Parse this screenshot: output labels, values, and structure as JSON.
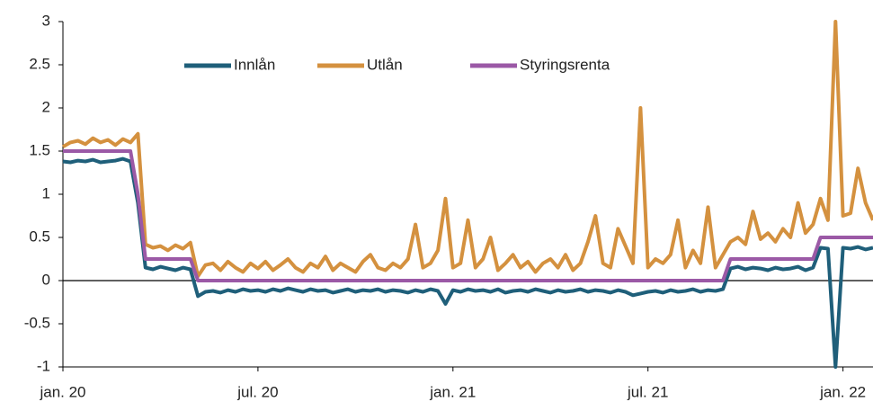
{
  "chart_data": {
    "type": "line",
    "categories": [
      "jan. 20",
      null,
      null,
      null,
      null,
      null,
      null,
      null,
      null,
      null,
      null,
      null,
      null,
      null,
      null,
      null,
      null,
      null,
      null,
      null,
      null,
      null,
      null,
      null,
      null,
      null,
      "jul. 20",
      null,
      null,
      null,
      null,
      null,
      null,
      null,
      null,
      null,
      null,
      null,
      null,
      null,
      null,
      null,
      null,
      null,
      null,
      null,
      null,
      null,
      null,
      null,
      null,
      null,
      "jan. 21",
      null,
      null,
      null,
      null,
      null,
      null,
      null,
      null,
      null,
      null,
      null,
      null,
      null,
      null,
      null,
      null,
      null,
      null,
      null,
      null,
      null,
      null,
      null,
      null,
      null,
      "jul. 21",
      null,
      null,
      null,
      null,
      null,
      null,
      null,
      null,
      null,
      null,
      null,
      null,
      null,
      null,
      null,
      null,
      null,
      null,
      null,
      null,
      null,
      null,
      null,
      null,
      null,
      "jan. 22",
      null,
      null,
      null,
      null
    ],
    "series": [
      {
        "name": "Innlån",
        "color": "#1f5f7a",
        "values": [
          1.38,
          1.37,
          1.39,
          1.38,
          1.4,
          1.37,
          1.38,
          1.39,
          1.41,
          1.38,
          0.9,
          0.15,
          0.13,
          0.16,
          0.14,
          0.12,
          0.15,
          0.13,
          -0.18,
          -0.13,
          -0.12,
          -0.14,
          -0.11,
          -0.13,
          -0.1,
          -0.12,
          -0.11,
          -0.13,
          -0.1,
          -0.12,
          -0.09,
          -0.11,
          -0.13,
          -0.1,
          -0.12,
          -0.11,
          -0.14,
          -0.12,
          -0.1,
          -0.13,
          -0.11,
          -0.12,
          -0.1,
          -0.13,
          -0.11,
          -0.12,
          -0.14,
          -0.11,
          -0.13,
          -0.1,
          -0.12,
          -0.27,
          -0.11,
          -0.13,
          -0.1,
          -0.12,
          -0.11,
          -0.13,
          -0.1,
          -0.14,
          -0.12,
          -0.11,
          -0.13,
          -0.1,
          -0.12,
          -0.14,
          -0.11,
          -0.13,
          -0.12,
          -0.1,
          -0.13,
          -0.11,
          -0.12,
          -0.14,
          -0.11,
          -0.13,
          -0.17,
          -0.15,
          -0.13,
          -0.12,
          -0.14,
          -0.11,
          -0.13,
          -0.12,
          -0.1,
          -0.13,
          -0.11,
          -0.12,
          -0.1,
          0.14,
          0.16,
          0.13,
          0.15,
          0.14,
          0.12,
          0.15,
          0.13,
          0.14,
          0.16,
          0.12,
          0.15,
          0.38,
          0.37,
          -1,
          0.38,
          0.37,
          0.39,
          0.36,
          0.38
        ]
      },
      {
        "name": "Utlån",
        "color": "#d4913f",
        "values": [
          1.55,
          1.6,
          1.62,
          1.58,
          1.65,
          1.6,
          1.63,
          1.57,
          1.64,
          1.6,
          1.7,
          0.42,
          0.38,
          0.4,
          0.35,
          0.41,
          0.37,
          0.44,
          0.05,
          0.18,
          0.2,
          0.12,
          0.22,
          0.15,
          0.1,
          0.2,
          0.14,
          0.22,
          0.12,
          0.18,
          0.25,
          0.15,
          0.1,
          0.2,
          0.15,
          0.28,
          0.12,
          0.2,
          0.15,
          0.1,
          0.22,
          0.3,
          0.15,
          0.12,
          0.2,
          0.15,
          0.25,
          0.65,
          0.15,
          0.2,
          0.35,
          0.95,
          0.15,
          0.2,
          0.7,
          0.15,
          0.25,
          0.5,
          0.12,
          0.2,
          0.3,
          0.15,
          0.22,
          0.1,
          0.2,
          0.25,
          0.15,
          0.3,
          0.12,
          0.2,
          0.45,
          0.75,
          0.2,
          0.15,
          0.6,
          0.4,
          0.2,
          2,
          0.15,
          0.25,
          0.2,
          0.3,
          0.7,
          0.15,
          0.35,
          0.2,
          0.85,
          0.15,
          0.3,
          0.45,
          0.5,
          0.42,
          0.8,
          0.48,
          0.55,
          0.45,
          0.6,
          0.5,
          0.9,
          0.55,
          0.65,
          0.95,
          0.7,
          3,
          0.75,
          0.78,
          1.3,
          0.9,
          0.7
        ]
      },
      {
        "name": "Styringsrenta",
        "color": "#9b59a6",
        "values": [
          1.5,
          1.5,
          1.5,
          1.5,
          1.5,
          1.5,
          1.5,
          1.5,
          1.5,
          1.5,
          1,
          0.25,
          0.25,
          0.25,
          0.25,
          0.25,
          0.25,
          0.25,
          0,
          0,
          0,
          0,
          0,
          0,
          0,
          0,
          0,
          0,
          0,
          0,
          0,
          0,
          0,
          0,
          0,
          0,
          0,
          0,
          0,
          0,
          0,
          0,
          0,
          0,
          0,
          0,
          0,
          0,
          0,
          0,
          0,
          0,
          0,
          0,
          0,
          0,
          0,
          0,
          0,
          0,
          0,
          0,
          0,
          0,
          0,
          0,
          0,
          0,
          0,
          0,
          0,
          0,
          0,
          0,
          0,
          0,
          0,
          0,
          0,
          0,
          0,
          0,
          0,
          0,
          0,
          0,
          0,
          0,
          0,
          0.25,
          0.25,
          0.25,
          0.25,
          0.25,
          0.25,
          0.25,
          0.25,
          0.25,
          0.25,
          0.25,
          0.25,
          0.5,
          0.5,
          0.5,
          0.5,
          0.5,
          0.5,
          0.5,
          0.5
        ]
      }
    ],
    "ylim": [
      -1,
      3
    ],
    "yticks": [
      -1,
      -0.5,
      0,
      0.5,
      1,
      1.5,
      2,
      2.5,
      3
    ],
    "grid": false,
    "legend": "top"
  }
}
